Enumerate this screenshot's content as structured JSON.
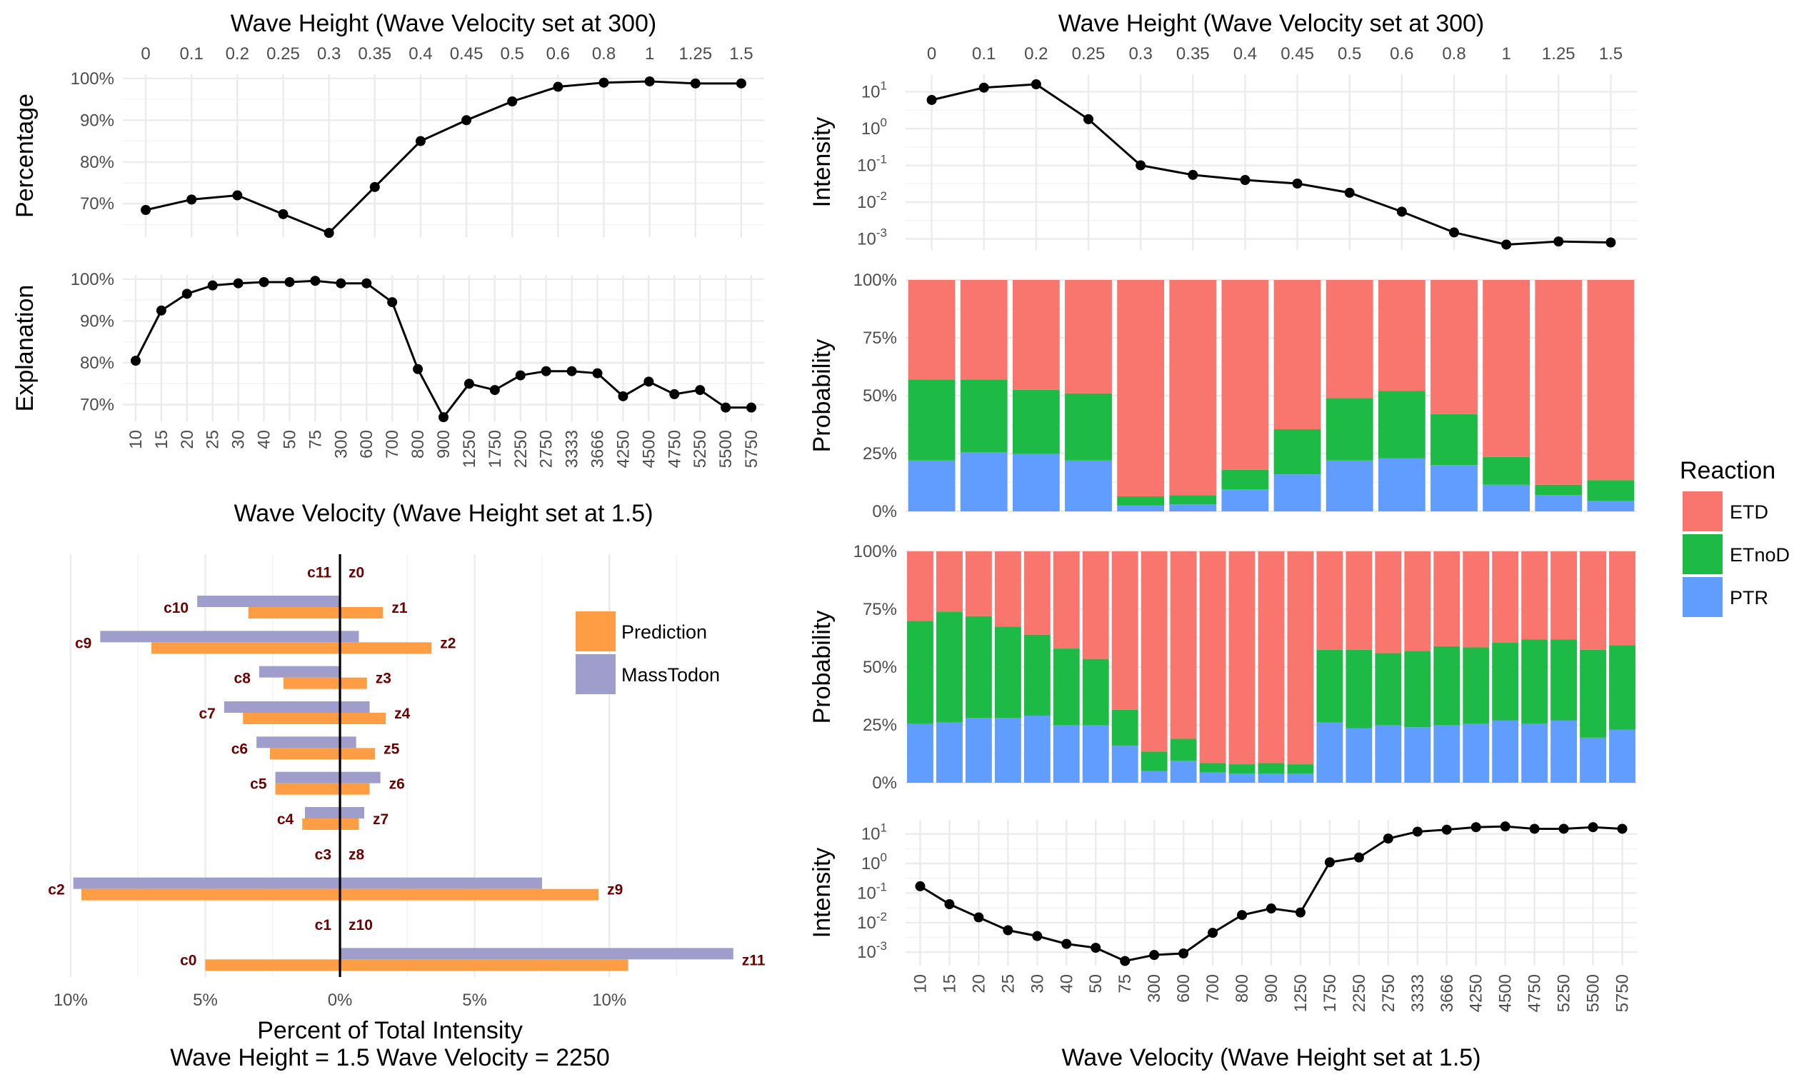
{
  "colors": {
    "ETD": "#f8766d",
    "ETnoD": "#1eba46",
    "PTR": "#619cff",
    "prediction": "#ff9d45",
    "masstodon": "#9e9dcc"
  },
  "chart_data": [
    {
      "id": "pct_height",
      "type": "line",
      "title": "Wave Height (Wave Velocity set at 300)",
      "ylabel": "Percentage",
      "categories": [
        "0",
        "0.1",
        "0.2",
        "0.25",
        "0.3",
        "0.35",
        "0.4",
        "0.45",
        "0.5",
        "0.6",
        "0.8",
        "1",
        "1.25",
        "1.5"
      ],
      "values": [
        68.5,
        71,
        72,
        67.5,
        63,
        74,
        85,
        90,
        94.5,
        98,
        99,
        99.3,
        98.8,
        98.8
      ],
      "ylim": [
        62,
        101
      ],
      "yticks": [
        70,
        80,
        90,
        100
      ],
      "ytick_labels": [
        "70%",
        "80%",
        "90%",
        "100%"
      ]
    },
    {
      "id": "expl_velocity",
      "type": "line",
      "ylabel": "Explanation",
      "xlabel": "Wave Velocity (Wave Height set at 1.5)",
      "categories": [
        "10",
        "15",
        "20",
        "25",
        "30",
        "40",
        "50",
        "75",
        "300",
        "600",
        "700",
        "800",
        "900",
        "1250",
        "1750",
        "2250",
        "2750",
        "3333",
        "3666",
        "4250",
        "4500",
        "4750",
        "5250",
        "5500",
        "5750"
      ],
      "values": [
        80.5,
        92.5,
        96.5,
        98.5,
        99,
        99.3,
        99.3,
        99.6,
        99,
        99,
        94.5,
        78.5,
        67,
        75,
        73.5,
        77,
        78,
        78,
        77.5,
        72,
        75.5,
        72.5,
        73.5,
        69.3,
        69.3
      ],
      "ylim": [
        66,
        101
      ],
      "yticks": [
        70,
        80,
        90,
        100
      ],
      "ytick_labels": [
        "70%",
        "80%",
        "90%",
        "100%"
      ]
    },
    {
      "id": "int_height",
      "type": "line",
      "title": "Wave Height (Wave Velocity set at 300)",
      "ylabel": "Intensity",
      "scale": "log",
      "categories": [
        "0",
        "0.1",
        "0.2",
        "0.25",
        "0.3",
        "0.35",
        "0.4",
        "0.45",
        "0.5",
        "0.6",
        "0.8",
        "1",
        "1.25",
        "1.5"
      ],
      "values": [
        6,
        13,
        16,
        1.8,
        0.1,
        0.055,
        0.04,
        0.032,
        0.018,
        0.0055,
        0.0015,
        0.0007,
        0.00085,
        0.0008
      ],
      "ylim": [
        0.0005,
        30
      ],
      "yticks": [
        0.001,
        0.01,
        0.1,
        1,
        10
      ],
      "ytick_base": "10",
      "ytick_exp": [
        "-3",
        "-2",
        "-1",
        "0",
        "1"
      ]
    },
    {
      "id": "prob_height",
      "type": "bar",
      "stacked": true,
      "ylabel": "Probability",
      "categories": [
        "0",
        "0.1",
        "0.2",
        "0.25",
        "0.3",
        "0.35",
        "0.4",
        "0.45",
        "0.5",
        "0.6",
        "0.8",
        "1",
        "1.25",
        "1.5"
      ],
      "series": [
        {
          "name": "PTR",
          "values": [
            22,
            25.5,
            25,
            22,
            2.5,
            3,
            9.5,
            16,
            22,
            23,
            20,
            11.5,
            7,
            4.5
          ]
        },
        {
          "name": "ETnoD",
          "values": [
            35,
            31.5,
            27.5,
            29,
            4,
            4,
            8.5,
            19.5,
            27,
            29,
            22,
            12,
            4.5,
            9
          ]
        },
        {
          "name": "ETD",
          "values": [
            43,
            43,
            47.5,
            49,
            93.5,
            93,
            82,
            64.5,
            51,
            48,
            58,
            76.5,
            88.5,
            86.5
          ]
        }
      ],
      "ylim": [
        0,
        100
      ],
      "yticks": [
        0,
        25,
        50,
        75,
        100
      ],
      "ytick_labels": [
        "0%",
        "25%",
        "50%",
        "75%",
        "100%"
      ]
    },
    {
      "id": "prob_velocity",
      "type": "bar",
      "stacked": true,
      "ylabel": "Probability",
      "categories": [
        "10",
        "15",
        "20",
        "25",
        "30",
        "40",
        "50",
        "75",
        "300",
        "600",
        "700",
        "800",
        "900",
        "1250",
        "1750",
        "2250",
        "2750",
        "3333",
        "3666",
        "4250",
        "4500",
        "4750",
        "5250",
        "5500",
        "5750"
      ],
      "series": [
        {
          "name": "PTR",
          "values": [
            25.5,
            26,
            28,
            28,
            29,
            25,
            25,
            16,
            5,
            9.5,
            4.5,
            4,
            4,
            4,
            26,
            23.5,
            25,
            24,
            25,
            25.5,
            27,
            25.5,
            27,
            19.5,
            23
          ]
        },
        {
          "name": "ETnoD",
          "values": [
            44.5,
            48,
            44,
            39.5,
            35,
            33,
            28.5,
            15.5,
            8.5,
            9.5,
            4,
            4,
            4.5,
            4,
            31.5,
            34,
            31,
            33,
            34,
            33,
            33.5,
            36.5,
            35,
            38,
            36.5
          ]
        },
        {
          "name": "ETD",
          "values": [
            30,
            26,
            28,
            32.5,
            36,
            42,
            46.5,
            68.5,
            86.5,
            81,
            91.5,
            92,
            91.5,
            92,
            42.5,
            42.5,
            44,
            43,
            41,
            41.5,
            39.5,
            38,
            38,
            42.5,
            40.5
          ]
        }
      ],
      "ylim": [
        0,
        100
      ],
      "yticks": [
        0,
        25,
        50,
        75,
        100
      ],
      "ytick_labels": [
        "0%",
        "25%",
        "50%",
        "75%",
        "100%"
      ]
    },
    {
      "id": "int_velocity",
      "type": "line",
      "ylabel": "Intensity",
      "xlabel": "Wave Velocity (Wave Height set at 1.5)",
      "scale": "log",
      "categories": [
        "10",
        "15",
        "20",
        "25",
        "30",
        "40",
        "50",
        "75",
        "300",
        "600",
        "700",
        "800",
        "900",
        "1250",
        "1750",
        "2250",
        "2750",
        "3333",
        "3666",
        "4250",
        "4500",
        "4750",
        "5250",
        "5500",
        "5750"
      ],
      "values": [
        0.17,
        0.042,
        0.015,
        0.0055,
        0.0035,
        0.0019,
        0.0014,
        0.0005,
        0.0008,
        0.0009,
        0.0045,
        0.018,
        0.03,
        0.022,
        1.1,
        1.6,
        7,
        12,
        14,
        17,
        18,
        15,
        15,
        17,
        15
      ],
      "ylim": [
        0.00035,
        30
      ],
      "yticks": [
        0.001,
        0.01,
        0.1,
        1,
        10
      ],
      "ytick_base": "10",
      "ytick_exp": [
        "-3",
        "-2",
        "-1",
        "0",
        "1"
      ]
    },
    {
      "id": "fragments",
      "type": "bar",
      "orientation": "horizontal",
      "xlabel": "Percent of Total Intensity",
      "subtitle": "Wave Height = 1.5 Wave Velocity = 2250",
      "xlim": [
        -10.5,
        15.8
      ],
      "xticks": [
        -10,
        -5,
        0,
        5,
        10
      ],
      "xtick_labels": [
        "10%",
        "5%",
        "0%",
        "5%",
        "10%"
      ],
      "legend": [
        "Prediction",
        "MassTodon"
      ],
      "pairs": [
        {
          "c": "c11",
          "z": "z0",
          "c_pred": 0,
          "c_mass": 0,
          "z_pred": 0,
          "z_mass": 0
        },
        {
          "c": "c10",
          "z": "z1",
          "c_pred": 3.4,
          "c_mass": 5.3,
          "z_pred": 1.6,
          "z_mass": 0
        },
        {
          "c": "c9",
          "z": "z2",
          "c_pred": 7.0,
          "c_mass": 8.9,
          "z_pred": 3.4,
          "z_mass": 0.7
        },
        {
          "c": "c8",
          "z": "z3",
          "c_pred": 2.1,
          "c_mass": 3.0,
          "z_pred": 1.0,
          "z_mass": 0
        },
        {
          "c": "c7",
          "z": "z4",
          "c_pred": 3.6,
          "c_mass": 4.3,
          "z_pred": 1.7,
          "z_mass": 1.1
        },
        {
          "c": "c6",
          "z": "z5",
          "c_pred": 2.6,
          "c_mass": 3.1,
          "z_pred": 1.3,
          "z_mass": 0.6
        },
        {
          "c": "c5",
          "z": "z6",
          "c_pred": 2.4,
          "c_mass": 2.4,
          "z_pred": 1.1,
          "z_mass": 1.5
        },
        {
          "c": "c4",
          "z": "z7",
          "c_pred": 1.4,
          "c_mass": 1.3,
          "z_pred": 0.7,
          "z_mass": 0.9
        },
        {
          "c": "c3",
          "z": "z8",
          "c_pred": 0,
          "c_mass": 0,
          "z_pred": 0,
          "z_mass": 0
        },
        {
          "c": "c2",
          "z": "z9",
          "c_pred": 9.6,
          "c_mass": 9.9,
          "z_pred": 9.6,
          "z_mass": 7.5
        },
        {
          "c": "c1",
          "z": "z10",
          "c_pred": 0,
          "c_mass": 0,
          "z_pred": 0,
          "z_mass": 0
        },
        {
          "c": "c0",
          "z": "z11",
          "c_pred": 5.0,
          "c_mass": 0,
          "z_pred": 10.7,
          "z_mass": 14.6
        }
      ]
    }
  ],
  "legend": {
    "title": "Reaction",
    "items": [
      "ETD",
      "ETnoD",
      "PTR"
    ]
  }
}
